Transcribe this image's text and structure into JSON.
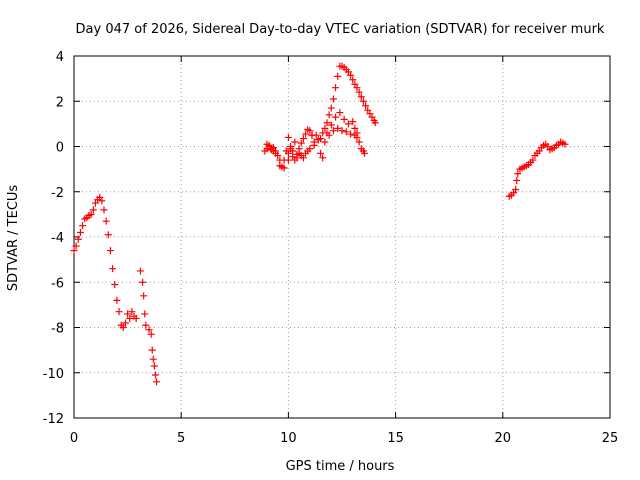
{
  "colors": {
    "series": "#ff0000",
    "axis": "#000000",
    "grid": "#a0a0a0",
    "background": "#ffffff"
  },
  "chart_data": {
    "type": "scatter",
    "title": "Day 047 of 2026, Sidereal Day-to-day VTEC variation (SDTVAR) for receiver murk",
    "xlabel": "GPS time / hours",
    "ylabel": "SDTVAR / TECUs",
    "xlim": [
      0,
      25
    ],
    "ylim": [
      -12,
      4
    ],
    "xticks": [
      0,
      5,
      10,
      15,
      20,
      25
    ],
    "yticks": [
      -12,
      -10,
      -8,
      -6,
      -4,
      -2,
      0,
      2,
      4
    ],
    "xtick_labels": [
      "0",
      "5",
      "10",
      "15",
      "20",
      "25"
    ],
    "ytick_labels": [
      "-12",
      "-10",
      "-8",
      "-6",
      "-4",
      "-2",
      "0",
      "2",
      "4"
    ],
    "grid": true,
    "marker": "plus",
    "series": [
      {
        "points": [
          [
            0.0,
            -4.6
          ],
          [
            0.1,
            -4.4
          ],
          [
            0.2,
            -4.1
          ],
          [
            0.3,
            -3.8
          ],
          [
            0.4,
            -3.5
          ],
          [
            0.5,
            -3.2
          ],
          [
            0.6,
            -3.15
          ],
          [
            0.7,
            -3.05
          ],
          [
            0.8,
            -3.0
          ],
          [
            0.9,
            -2.8
          ],
          [
            1.0,
            -2.5
          ],
          [
            1.1,
            -2.35
          ],
          [
            1.2,
            -2.25
          ],
          [
            1.3,
            -2.4
          ],
          [
            1.4,
            -2.8
          ],
          [
            1.5,
            -3.3
          ],
          [
            1.6,
            -3.9
          ],
          [
            1.7,
            -4.6
          ],
          [
            1.8,
            -5.4
          ],
          [
            1.9,
            -6.1
          ],
          [
            2.0,
            -6.8
          ],
          [
            2.1,
            -7.3
          ],
          [
            2.2,
            -7.9
          ],
          [
            2.3,
            -8.0
          ],
          [
            2.4,
            -7.8
          ],
          [
            2.5,
            -7.4
          ],
          [
            2.6,
            -7.6
          ],
          [
            2.7,
            -7.3
          ],
          [
            2.8,
            -7.5
          ],
          [
            2.9,
            -7.6
          ],
          [
            3.1,
            -5.5
          ],
          [
            3.2,
            -6.0
          ],
          [
            3.25,
            -6.6
          ],
          [
            3.3,
            -7.4
          ],
          [
            3.35,
            -7.9
          ],
          [
            3.5,
            -8.1
          ],
          [
            3.6,
            -8.3
          ],
          [
            3.65,
            -9.0
          ],
          [
            3.7,
            -9.4
          ],
          [
            3.75,
            -9.7
          ],
          [
            3.8,
            -10.1
          ],
          [
            3.85,
            -10.4
          ]
        ]
      },
      {
        "points": [
          [
            8.9,
            -0.2
          ],
          [
            9.0,
            -0.1
          ],
          [
            9.1,
            0.0
          ],
          [
            9.2,
            -0.15
          ],
          [
            9.3,
            -0.2
          ],
          [
            9.4,
            -0.3
          ],
          [
            9.5,
            -0.4
          ],
          [
            9.6,
            -0.6
          ],
          [
            9.7,
            -0.9
          ],
          [
            9.8,
            -0.6
          ],
          [
            9.9,
            -0.2
          ],
          [
            10.0,
            -0.3
          ],
          [
            10.1,
            -0.1
          ],
          [
            10.2,
            -0.45
          ],
          [
            10.3,
            -0.6
          ],
          [
            10.4,
            -0.35
          ],
          [
            10.5,
            -0.1
          ],
          [
            10.6,
            0.15
          ],
          [
            10.7,
            0.35
          ],
          [
            10.8,
            0.55
          ],
          [
            10.9,
            0.75
          ],
          [
            11.0,
            0.7
          ],
          [
            11.1,
            0.5
          ],
          [
            11.2,
            0.2
          ],
          [
            11.3,
            0.5
          ],
          [
            11.4,
            0.3
          ],
          [
            11.5,
            0.35
          ],
          [
            11.6,
            0.6
          ],
          [
            11.7,
            0.8
          ],
          [
            11.8,
            1.05
          ],
          [
            11.9,
            1.4
          ],
          [
            12.0,
            1.7
          ],
          [
            12.1,
            2.1
          ],
          [
            12.2,
            2.6
          ],
          [
            12.3,
            3.1
          ],
          [
            12.4,
            3.55
          ],
          [
            12.5,
            3.55
          ],
          [
            12.6,
            3.5
          ],
          [
            12.7,
            3.4
          ],
          [
            12.8,
            3.3
          ],
          [
            12.9,
            3.15
          ],
          [
            13.0,
            2.95
          ],
          [
            13.1,
            2.75
          ],
          [
            13.2,
            2.6
          ],
          [
            13.3,
            2.4
          ],
          [
            13.4,
            2.2
          ],
          [
            13.5,
            2.0
          ],
          [
            13.6,
            1.8
          ],
          [
            13.7,
            1.6
          ],
          [
            13.8,
            1.45
          ],
          [
            13.9,
            1.3
          ],
          [
            14.0,
            1.15
          ],
          [
            14.05,
            1.05
          ],
          [
            9.0,
            0.1
          ],
          [
            9.1,
            0.05
          ],
          [
            9.2,
            -0.1
          ],
          [
            9.3,
            -0.05
          ],
          [
            9.4,
            -0.2
          ],
          [
            9.6,
            -0.85
          ],
          [
            9.8,
            -0.95
          ],
          [
            10.0,
            -0.6
          ],
          [
            10.2,
            -0.2
          ],
          [
            10.4,
            -0.5
          ],
          [
            10.6,
            -0.4
          ],
          [
            10.8,
            -0.3
          ],
          [
            11.0,
            -0.1
          ],
          [
            11.2,
            0.05
          ],
          [
            11.4,
            0.3
          ],
          [
            11.6,
            -0.5
          ],
          [
            11.7,
            0.2
          ],
          [
            11.8,
            0.6
          ],
          [
            12.0,
            0.95
          ],
          [
            12.2,
            1.3
          ],
          [
            12.4,
            1.5
          ],
          [
            12.6,
            1.2
          ],
          [
            12.8,
            1.0
          ],
          [
            13.0,
            1.1
          ],
          [
            13.1,
            0.8
          ],
          [
            13.2,
            0.6
          ],
          [
            13.3,
            0.2
          ],
          [
            13.4,
            -0.1
          ],
          [
            13.5,
            -0.2
          ],
          [
            13.55,
            -0.3
          ],
          [
            10.0,
            0.4
          ],
          [
            10.1,
            0.0
          ],
          [
            10.3,
            0.2
          ],
          [
            10.5,
            -0.3
          ],
          [
            10.7,
            -0.5
          ],
          [
            10.9,
            -0.2
          ],
          [
            11.1,
            0.5
          ],
          [
            11.5,
            -0.3
          ],
          [
            11.9,
            0.5
          ],
          [
            12.1,
            0.7
          ],
          [
            12.3,
            0.8
          ],
          [
            12.5,
            0.7
          ],
          [
            12.7,
            0.65
          ],
          [
            12.9,
            0.55
          ],
          [
            13.1,
            0.5
          ],
          [
            13.2,
            0.4
          ]
        ]
      },
      {
        "points": [
          [
            20.3,
            -2.2
          ],
          [
            20.4,
            -2.15
          ],
          [
            20.5,
            -2.05
          ],
          [
            20.6,
            -1.9
          ],
          [
            20.65,
            -1.5
          ],
          [
            20.7,
            -1.2
          ],
          [
            20.8,
            -1.0
          ],
          [
            20.9,
            -0.95
          ],
          [
            21.0,
            -0.9
          ],
          [
            21.1,
            -0.85
          ],
          [
            21.2,
            -0.8
          ],
          [
            21.3,
            -0.7
          ],
          [
            21.4,
            -0.6
          ],
          [
            21.5,
            -0.4
          ],
          [
            21.6,
            -0.3
          ],
          [
            21.7,
            -0.2
          ],
          [
            21.8,
            -0.05
          ],
          [
            21.9,
            0.05
          ],
          [
            22.0,
            0.1
          ],
          [
            22.1,
            0.0
          ],
          [
            22.2,
            -0.15
          ],
          [
            22.3,
            -0.1
          ],
          [
            22.4,
            -0.05
          ],
          [
            22.5,
            0.05
          ],
          [
            22.6,
            0.1
          ],
          [
            22.7,
            0.2
          ],
          [
            22.8,
            0.15
          ],
          [
            22.9,
            0.1
          ]
        ]
      }
    ]
  }
}
